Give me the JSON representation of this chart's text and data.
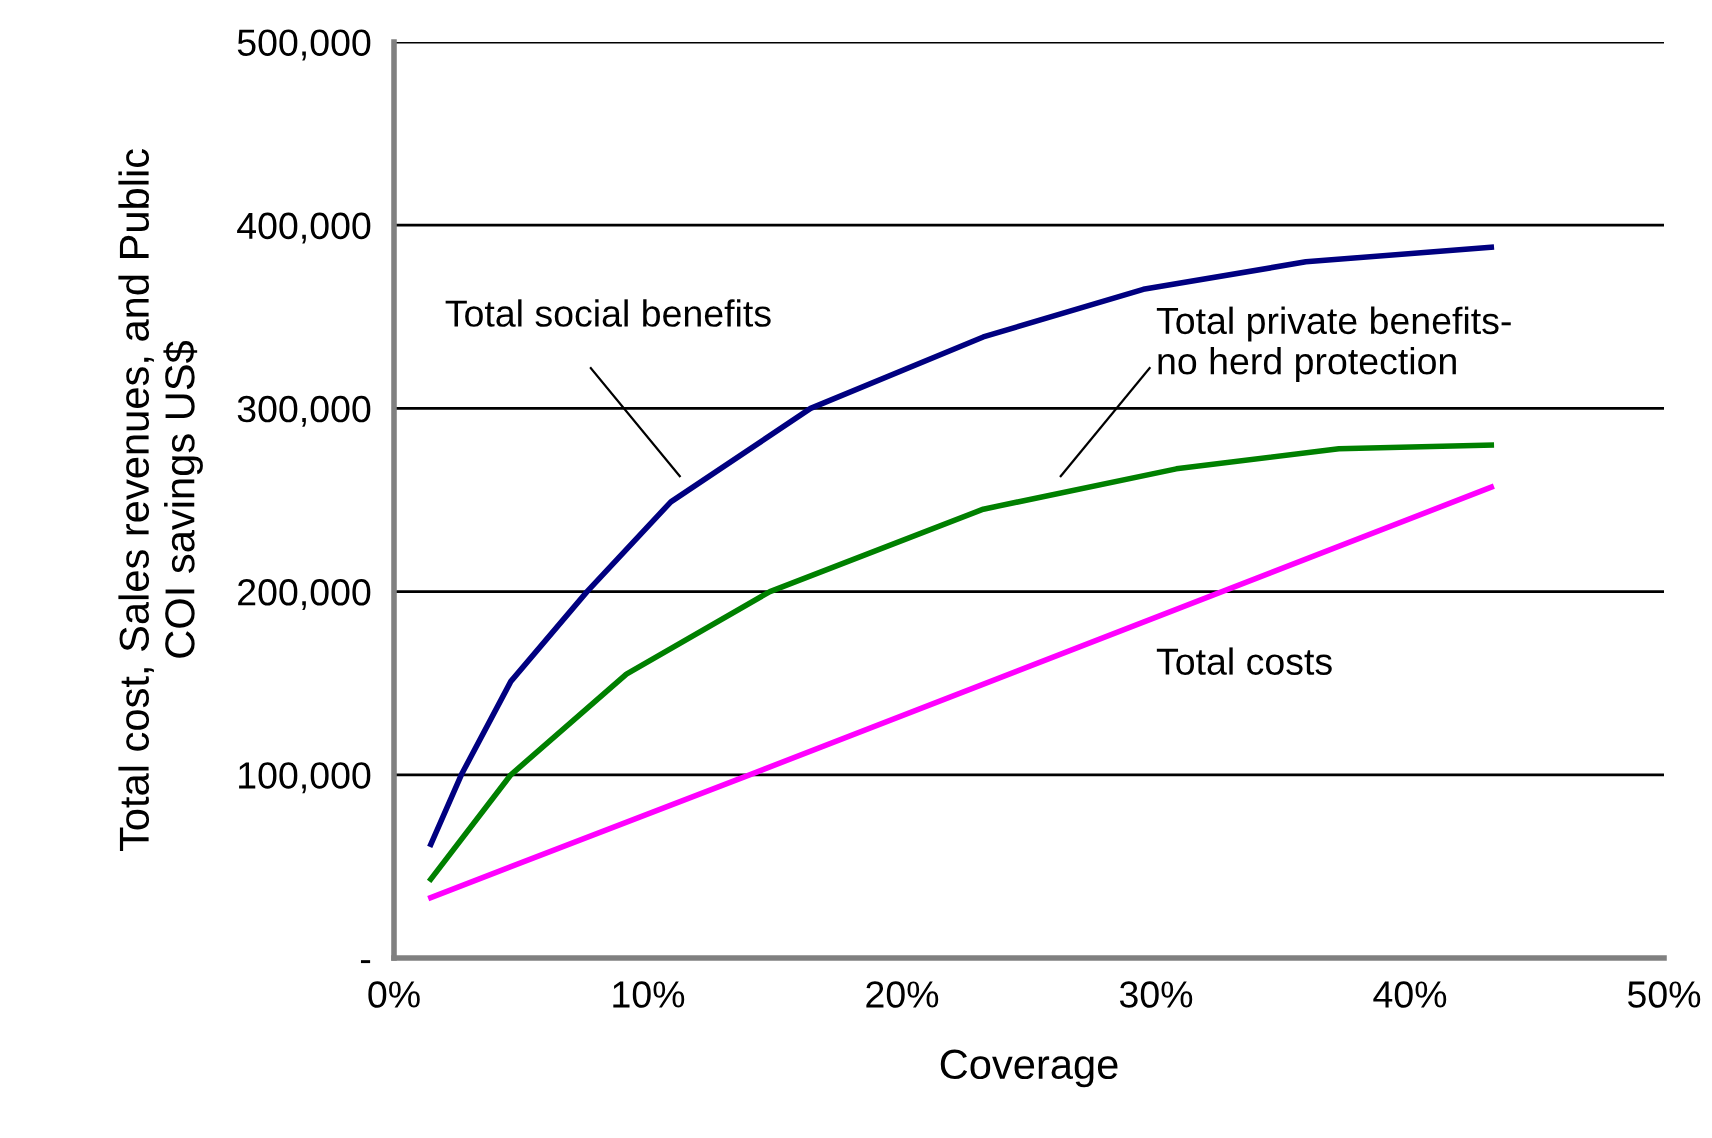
{
  "chart_data": {
    "type": "line",
    "xlabel": "Coverage",
    "ylabel": "Total cost, Sales revenues, and Public\nCOI savings US$",
    "series": [
      {
        "color": "#000080",
        "x": [
          1.45,
          2.65,
          4.6,
          7.6,
          10.9,
          16.4,
          23.2,
          29.5,
          35.9,
          43.2
        ],
        "values": [
          62000,
          100000,
          151000,
          200000,
          249000,
          300000,
          339000,
          365000,
          380000,
          388000
        ]
      },
      {
        "color": "#008000",
        "x": [
          1.45,
          4.6,
          9.15,
          14.8,
          23.2,
          30.8,
          37.2,
          43.2
        ],
        "values": [
          43000,
          100000,
          155000,
          200000,
          245000,
          267000,
          278000,
          280000
        ]
      },
      {
        "color": "#ff00ff",
        "x": [
          1.45,
          14.0,
          43.2
        ],
        "values": [
          33000,
          100000,
          257000
        ]
      }
    ],
    "annotations": [
      "Total social benefits",
      "Total private benefits-\nno herd protection",
      "Total costs"
    ],
    "xlim": [
      0,
      50
    ],
    "xticks": [
      {
        "value": 0,
        "label": "0%"
      },
      {
        "value": 10,
        "label": "10%"
      },
      {
        "value": 20,
        "label": "20%"
      },
      {
        "value": 30,
        "label": "30%"
      },
      {
        "value": 40,
        "label": "40%"
      },
      {
        "value": 50,
        "label": "50%"
      }
    ],
    "ylim": [
      0,
      500000
    ],
    "yticks": [
      {
        "value": 0,
        "label": "-"
      },
      {
        "value": 100000,
        "label": "100,000"
      },
      {
        "value": 200000,
        "label": "200,000"
      },
      {
        "value": 300000,
        "label": "300,000"
      },
      {
        "value": 400000,
        "label": "400,000"
      },
      {
        "value": 500000,
        "label": "500,000"
      }
    ],
    "grid": "y",
    "line_style": "solid",
    "marker": "none"
  }
}
